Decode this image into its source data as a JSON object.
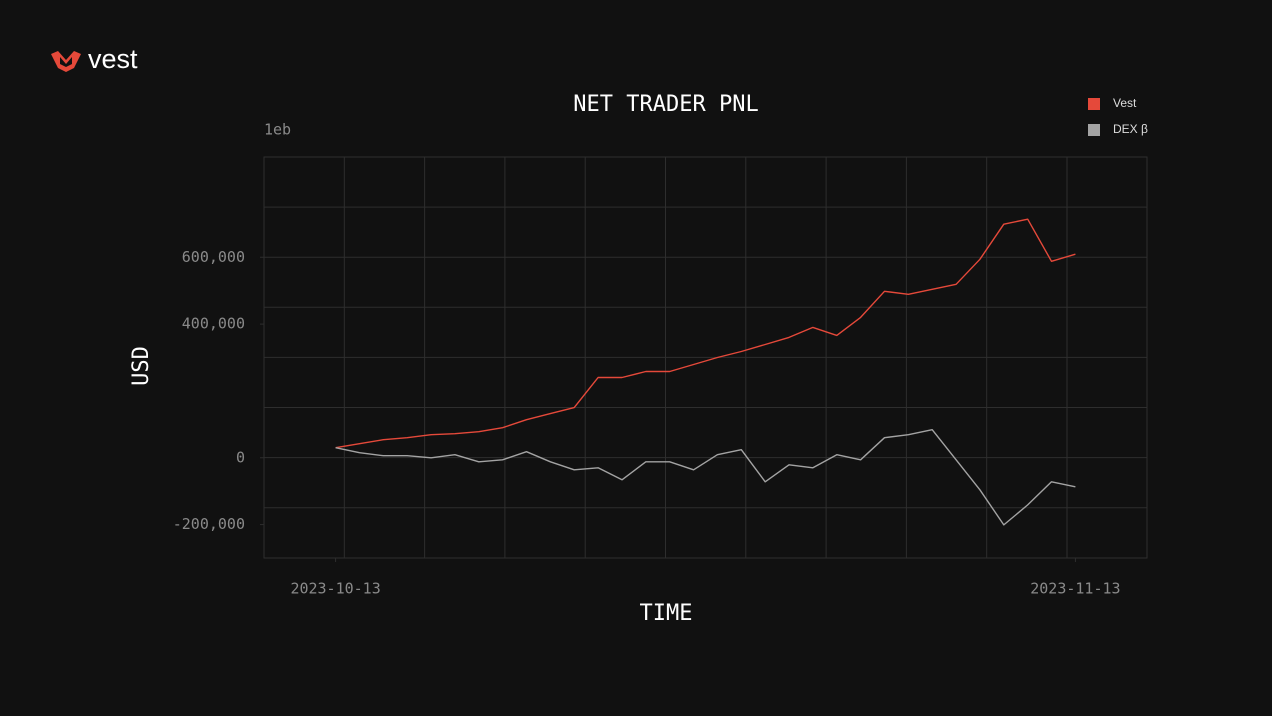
{
  "brand": "vest",
  "chart_data": {
    "type": "line",
    "title": "NET TRADER PNL",
    "xlabel": "TIME",
    "ylabel": "USD",
    "y_offset_label": "1eb",
    "x": [
      "2023-10-13",
      "2023-10-14",
      "2023-10-15",
      "2023-10-16",
      "2023-10-17",
      "2023-10-18",
      "2023-10-19",
      "2023-10-20",
      "2023-10-21",
      "2023-10-22",
      "2023-10-23",
      "2023-10-24",
      "2023-10-25",
      "2023-10-26",
      "2023-10-27",
      "2023-10-28",
      "2023-10-29",
      "2023-10-30",
      "2023-10-31",
      "2023-11-01",
      "2023-11-02",
      "2023-11-03",
      "2023-11-04",
      "2023-11-05",
      "2023-11-06",
      "2023-11-07",
      "2023-11-08",
      "2023-11-09",
      "2023-11-10",
      "2023-11-11",
      "2023-11-12",
      "2023-11-13"
    ],
    "series": [
      {
        "name": "Vest",
        "color": "#e5493a",
        "values": [
          30000,
          42000,
          54000,
          60000,
          69000,
          72000,
          78000,
          90000,
          114000,
          132000,
          150000,
          240000,
          240000,
          258000,
          258000,
          279000,
          300000,
          318000,
          339000,
          360000,
          390000,
          366000,
          420000,
          498000,
          489000,
          504000,
          519000,
          594000,
          699000,
          714000,
          588000,
          609000
        ]
      },
      {
        "name": "DEX β",
        "color": "#a3a3a3",
        "values": [
          30000,
          15000,
          6000,
          6000,
          0,
          9000,
          -12000,
          -6000,
          18000,
          -12000,
          -36000,
          -30000,
          -66000,
          -12000,
          -12000,
          -36000,
          9000,
          24000,
          -72000,
          -21000,
          -30000,
          9000,
          -6000,
          60000,
          69000,
          84000,
          -6000,
          -96000,
          -201000,
          -141000,
          -72000,
          -87000
        ]
      }
    ],
    "xlim": [
      "2023-10-10",
      "2023-11-16"
    ],
    "xticks": [
      "2023-10-13",
      "2023-11-13"
    ],
    "ylim": [
      -300000,
      900000
    ],
    "yticks": [
      {
        "value": -200000,
        "label": "-200,000"
      },
      {
        "value": 0,
        "label": "0"
      },
      {
        "value": 400000,
        "label": "400,000"
      },
      {
        "value": 600000,
        "label": "600,000"
      }
    ],
    "legend": "upper right"
  }
}
